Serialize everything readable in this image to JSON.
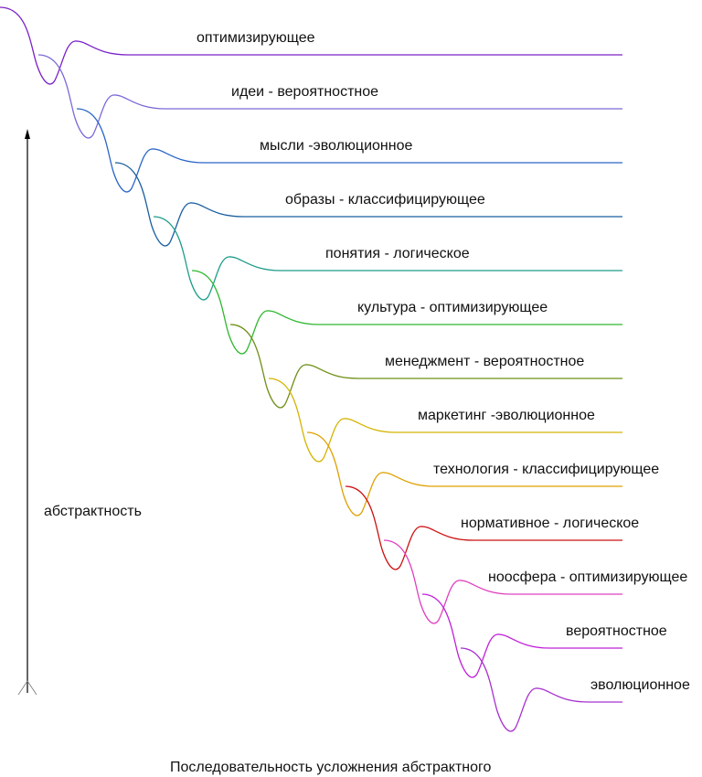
{
  "levels": [
    {
      "label": "оптимизирующее",
      "color": "#7a22c8"
    },
    {
      "label": "идеи - вероятностное",
      "color": "#7b6ad8"
    },
    {
      "label": "мысли -эволюционное",
      "color": "#2a66c8"
    },
    {
      "label": "образы - классифицирующее",
      "color": "#1a5fa0"
    },
    {
      "label": "понятия - логическое",
      "color": "#1e9c8a"
    },
    {
      "label": "культура - оптимизирующее",
      "color": "#2eb82e"
    },
    {
      "label": "менеджмент - вероятностное",
      "color": "#6e8f16"
    },
    {
      "label": "маркетинг -эволюционное",
      "color": "#d4b400"
    },
    {
      "label": "технология - классифицирующее",
      "color": "#e0a000"
    },
    {
      "label": "нормативное - логическое",
      "color": "#cc1111"
    },
    {
      "label": "ноосфера - оптимизирующее",
      "color": "#e040c0"
    },
    {
      "label": "вероятностное",
      "color": "#c020d8"
    },
    {
      "label": "эволюционное",
      "color": "#a830d0"
    }
  ],
  "axis": {
    "label": "абстрактность"
  },
  "caption": "Последовательность усложнения абстрактного"
}
